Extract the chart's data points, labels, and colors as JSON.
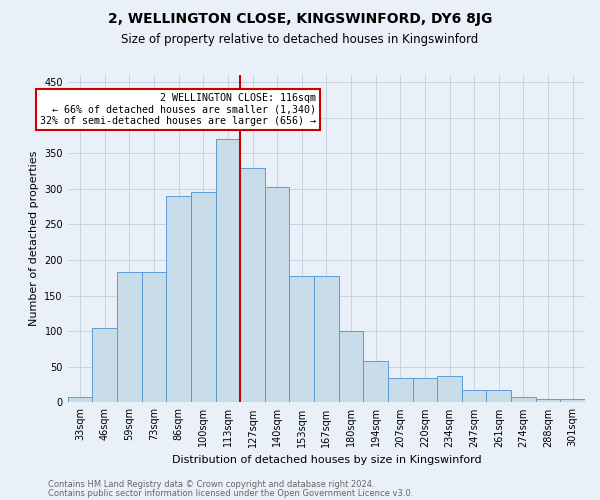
{
  "title": "2, WELLINGTON CLOSE, KINGSWINFORD, DY6 8JG",
  "subtitle": "Size of property relative to detached houses in Kingswinford",
  "xlabel": "Distribution of detached houses by size in Kingswinford",
  "ylabel": "Number of detached properties",
  "footnote1": "Contains HM Land Registry data © Crown copyright and database right 2024.",
  "footnote2": "Contains public sector information licensed under the Open Government Licence v3.0.",
  "bin_labels": [
    "33sqm",
    "46sqm",
    "59sqm",
    "73sqm",
    "86sqm",
    "100sqm",
    "113sqm",
    "127sqm",
    "140sqm",
    "153sqm",
    "167sqm",
    "180sqm",
    "194sqm",
    "207sqm",
    "220sqm",
    "234sqm",
    "247sqm",
    "261sqm",
    "274sqm",
    "288sqm",
    "301sqm"
  ],
  "bar_heights": [
    8,
    105,
    183,
    183,
    290,
    295,
    370,
    330,
    303,
    178,
    178,
    100,
    58,
    35,
    35,
    37,
    18,
    18,
    8,
    5,
    5
  ],
  "bar_color": "#c9dcea",
  "bar_edge_color": "#5b9bd5",
  "vline_color": "#cc0000",
  "annotation_text": "2 WELLINGTON CLOSE: 116sqm\n← 66% of detached houses are smaller (1,340)\n32% of semi-detached houses are larger (656) →",
  "annotation_box_color": "#ffffff",
  "annotation_box_edge": "#cc0000",
  "ylim": [
    0,
    460
  ],
  "yticks": [
    0,
    50,
    100,
    150,
    200,
    250,
    300,
    350,
    400,
    450
  ],
  "grid_color": "#c8d4e3",
  "bg_color": "#eaf0f8",
  "title_fontsize": 10,
  "subtitle_fontsize": 8.5,
  "ylabel_fontsize": 8,
  "xlabel_fontsize": 8,
  "tick_fontsize": 7,
  "footnote_fontsize": 6
}
